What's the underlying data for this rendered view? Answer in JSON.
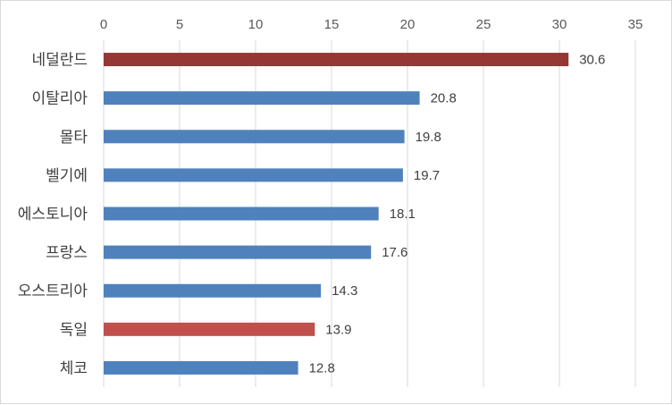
{
  "chart_data": {
    "type": "bar",
    "orientation": "horizontal",
    "categories": [
      "네덜란드",
      "이탈리아",
      "몰타",
      "벨기에",
      "에스토니아",
      "프랑스",
      "오스트리아",
      "독일",
      "체코"
    ],
    "values": [
      30.6,
      20.8,
      19.8,
      19.7,
      18.1,
      17.6,
      14.3,
      13.9,
      12.8
    ],
    "bar_colors": [
      "#953735",
      "#4f81bd",
      "#4f81bd",
      "#4f81bd",
      "#4f81bd",
      "#4f81bd",
      "#4f81bd",
      "#c0504d",
      "#4f81bd"
    ],
    "xlim": [
      0,
      35
    ],
    "x_ticks": [
      0,
      5,
      10,
      15,
      20,
      25,
      30,
      35
    ],
    "x_axis_position": "top",
    "grid": true,
    "data_labels": true,
    "title": "",
    "xlabel": "",
    "ylabel": ""
  }
}
